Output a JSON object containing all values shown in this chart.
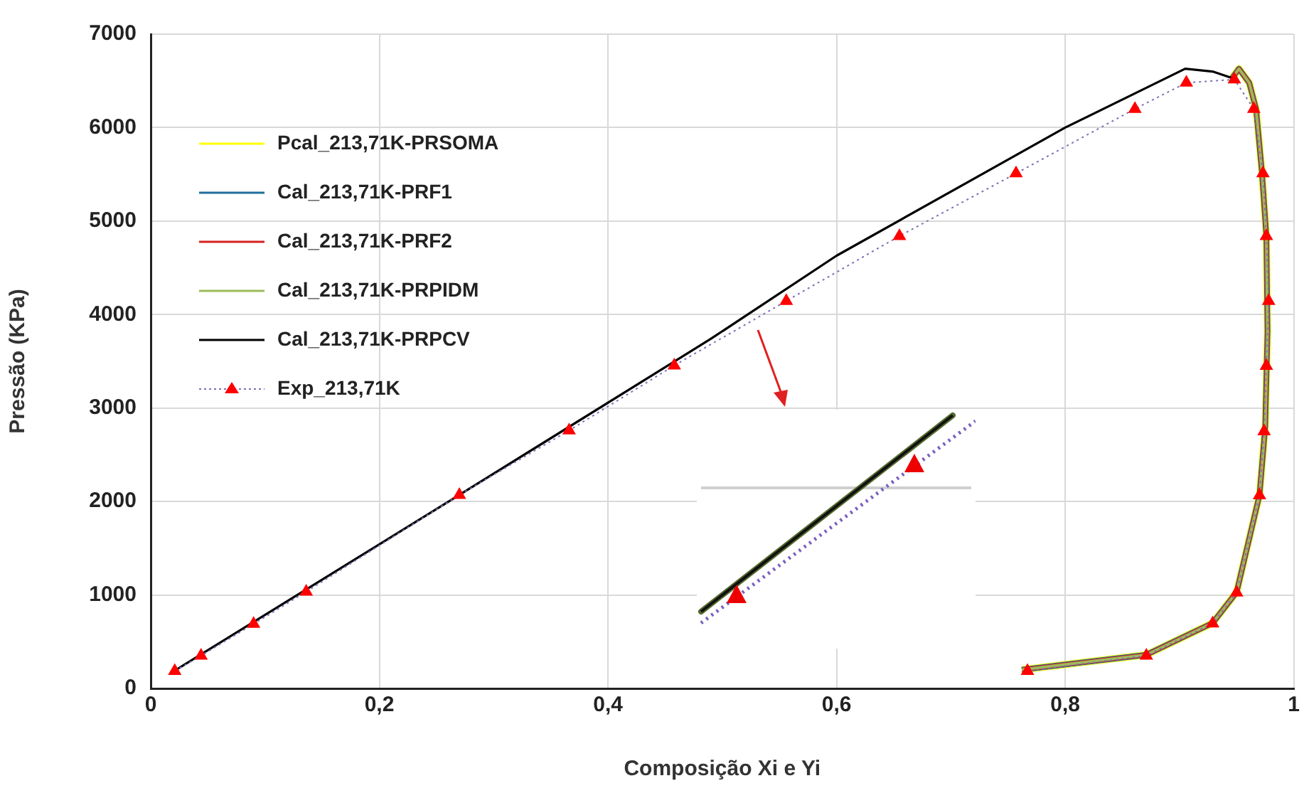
{
  "chart_data": {
    "type": "line",
    "xlabel": "Composição Xi e Yi",
    "ylabel": "Pressão (KPa)",
    "xlim": [
      0,
      1
    ],
    "ylim": [
      0,
      7000
    ],
    "xticks": [
      0,
      {
        "value": 0.2,
        "label": "0,2"
      },
      {
        "value": 0.4,
        "label": "0,4"
      },
      {
        "value": 0.6,
        "label": "0,6"
      },
      {
        "value": 0.8,
        "label": "0,8"
      },
      1
    ],
    "yticks": [
      0,
      1000,
      2000,
      3000,
      4000,
      5000,
      6000,
      7000
    ],
    "grid": true,
    "legend": "top left",
    "series": [
      {
        "name": "Pcal_213,71K-PRSOMA",
        "color": "#ffff00",
        "marker": "none",
        "line_style": "solid",
        "x": [
          0.946,
          0.952,
          0.961,
          0.967,
          0.972,
          0.976,
          0.977,
          0.975,
          0.97,
          0.95,
          0.929,
          0.871,
          0.762
        ],
        "values": [
          6530,
          6630,
          6480,
          6200,
          5540,
          4840,
          3820,
          2800,
          2070,
          1030,
          700,
          360,
          200
        ]
      },
      {
        "name": "Cal_213,71K-PRF1",
        "color": "#1f6e9c",
        "marker": "none",
        "line_style": "solid",
        "x": [
          0.946,
          0.952,
          0.961,
          0.967,
          0.972,
          0.976,
          0.977,
          0.975,
          0.97,
          0.95,
          0.929,
          0.871,
          0.762
        ],
        "values": [
          6530,
          6630,
          6480,
          6200,
          5540,
          4840,
          3820,
          2800,
          2070,
          1030,
          700,
          360,
          200
        ]
      },
      {
        "name": "Cal_213,71K-PRF2",
        "color": "#d62020",
        "marker": "none",
        "line_style": "solid",
        "x": [
          0.946,
          0.952,
          0.961,
          0.967,
          0.972,
          0.976,
          0.977,
          0.975,
          0.97,
          0.95,
          0.929,
          0.871,
          0.762
        ],
        "values": [
          6530,
          6630,
          6480,
          6200,
          5540,
          4840,
          3820,
          2800,
          2070,
          1030,
          700,
          360,
          200
        ]
      },
      {
        "name": "Cal_213,71K-PRPIDM",
        "color": "#9bbb59",
        "marker": "none",
        "line_style": "solid",
        "x": [
          0.946,
          0.952,
          0.961,
          0.967,
          0.972,
          0.976,
          0.977,
          0.975,
          0.97,
          0.95,
          0.929,
          0.871,
          0.762
        ],
        "values": [
          6530,
          6630,
          6480,
          6200,
          5540,
          4840,
          3820,
          2800,
          2070,
          1030,
          700,
          360,
          200
        ]
      },
      {
        "name": "Cal_213,71K-PRPCV",
        "color": "#000000",
        "marker": "none",
        "line_style": "solid",
        "x": [
          0.021,
          0.27,
          0.49,
          0.6,
          0.8,
          0.905,
          0.929,
          0.946
        ],
        "values": [
          190,
          2070,
          3740,
          4630,
          6000,
          6630,
          6600,
          6530
        ]
      },
      {
        "name": "Exp_213,71K",
        "color": "#ff0000",
        "marker": "triangle",
        "line_style": "dotted",
        "x": [
          0.021,
          0.044,
          0.09,
          0.136,
          0.27,
          0.366,
          0.458,
          0.556,
          0.655,
          0.757,
          0.861,
          0.906,
          0.948,
          0.965,
          0.973,
          0.976,
          0.978,
          0.976,
          0.974,
          0.97,
          0.95,
          0.929,
          0.871,
          0.767
        ],
        "values": [
          187,
          350,
          690,
          1035,
          2070,
          2760,
          3455,
          4145,
          4840,
          5510,
          6200,
          6480,
          6515,
          6200,
          5510,
          4840,
          4145,
          3450,
          2750,
          2065,
          1025,
          695,
          350,
          187
        ]
      }
    ]
  }
}
